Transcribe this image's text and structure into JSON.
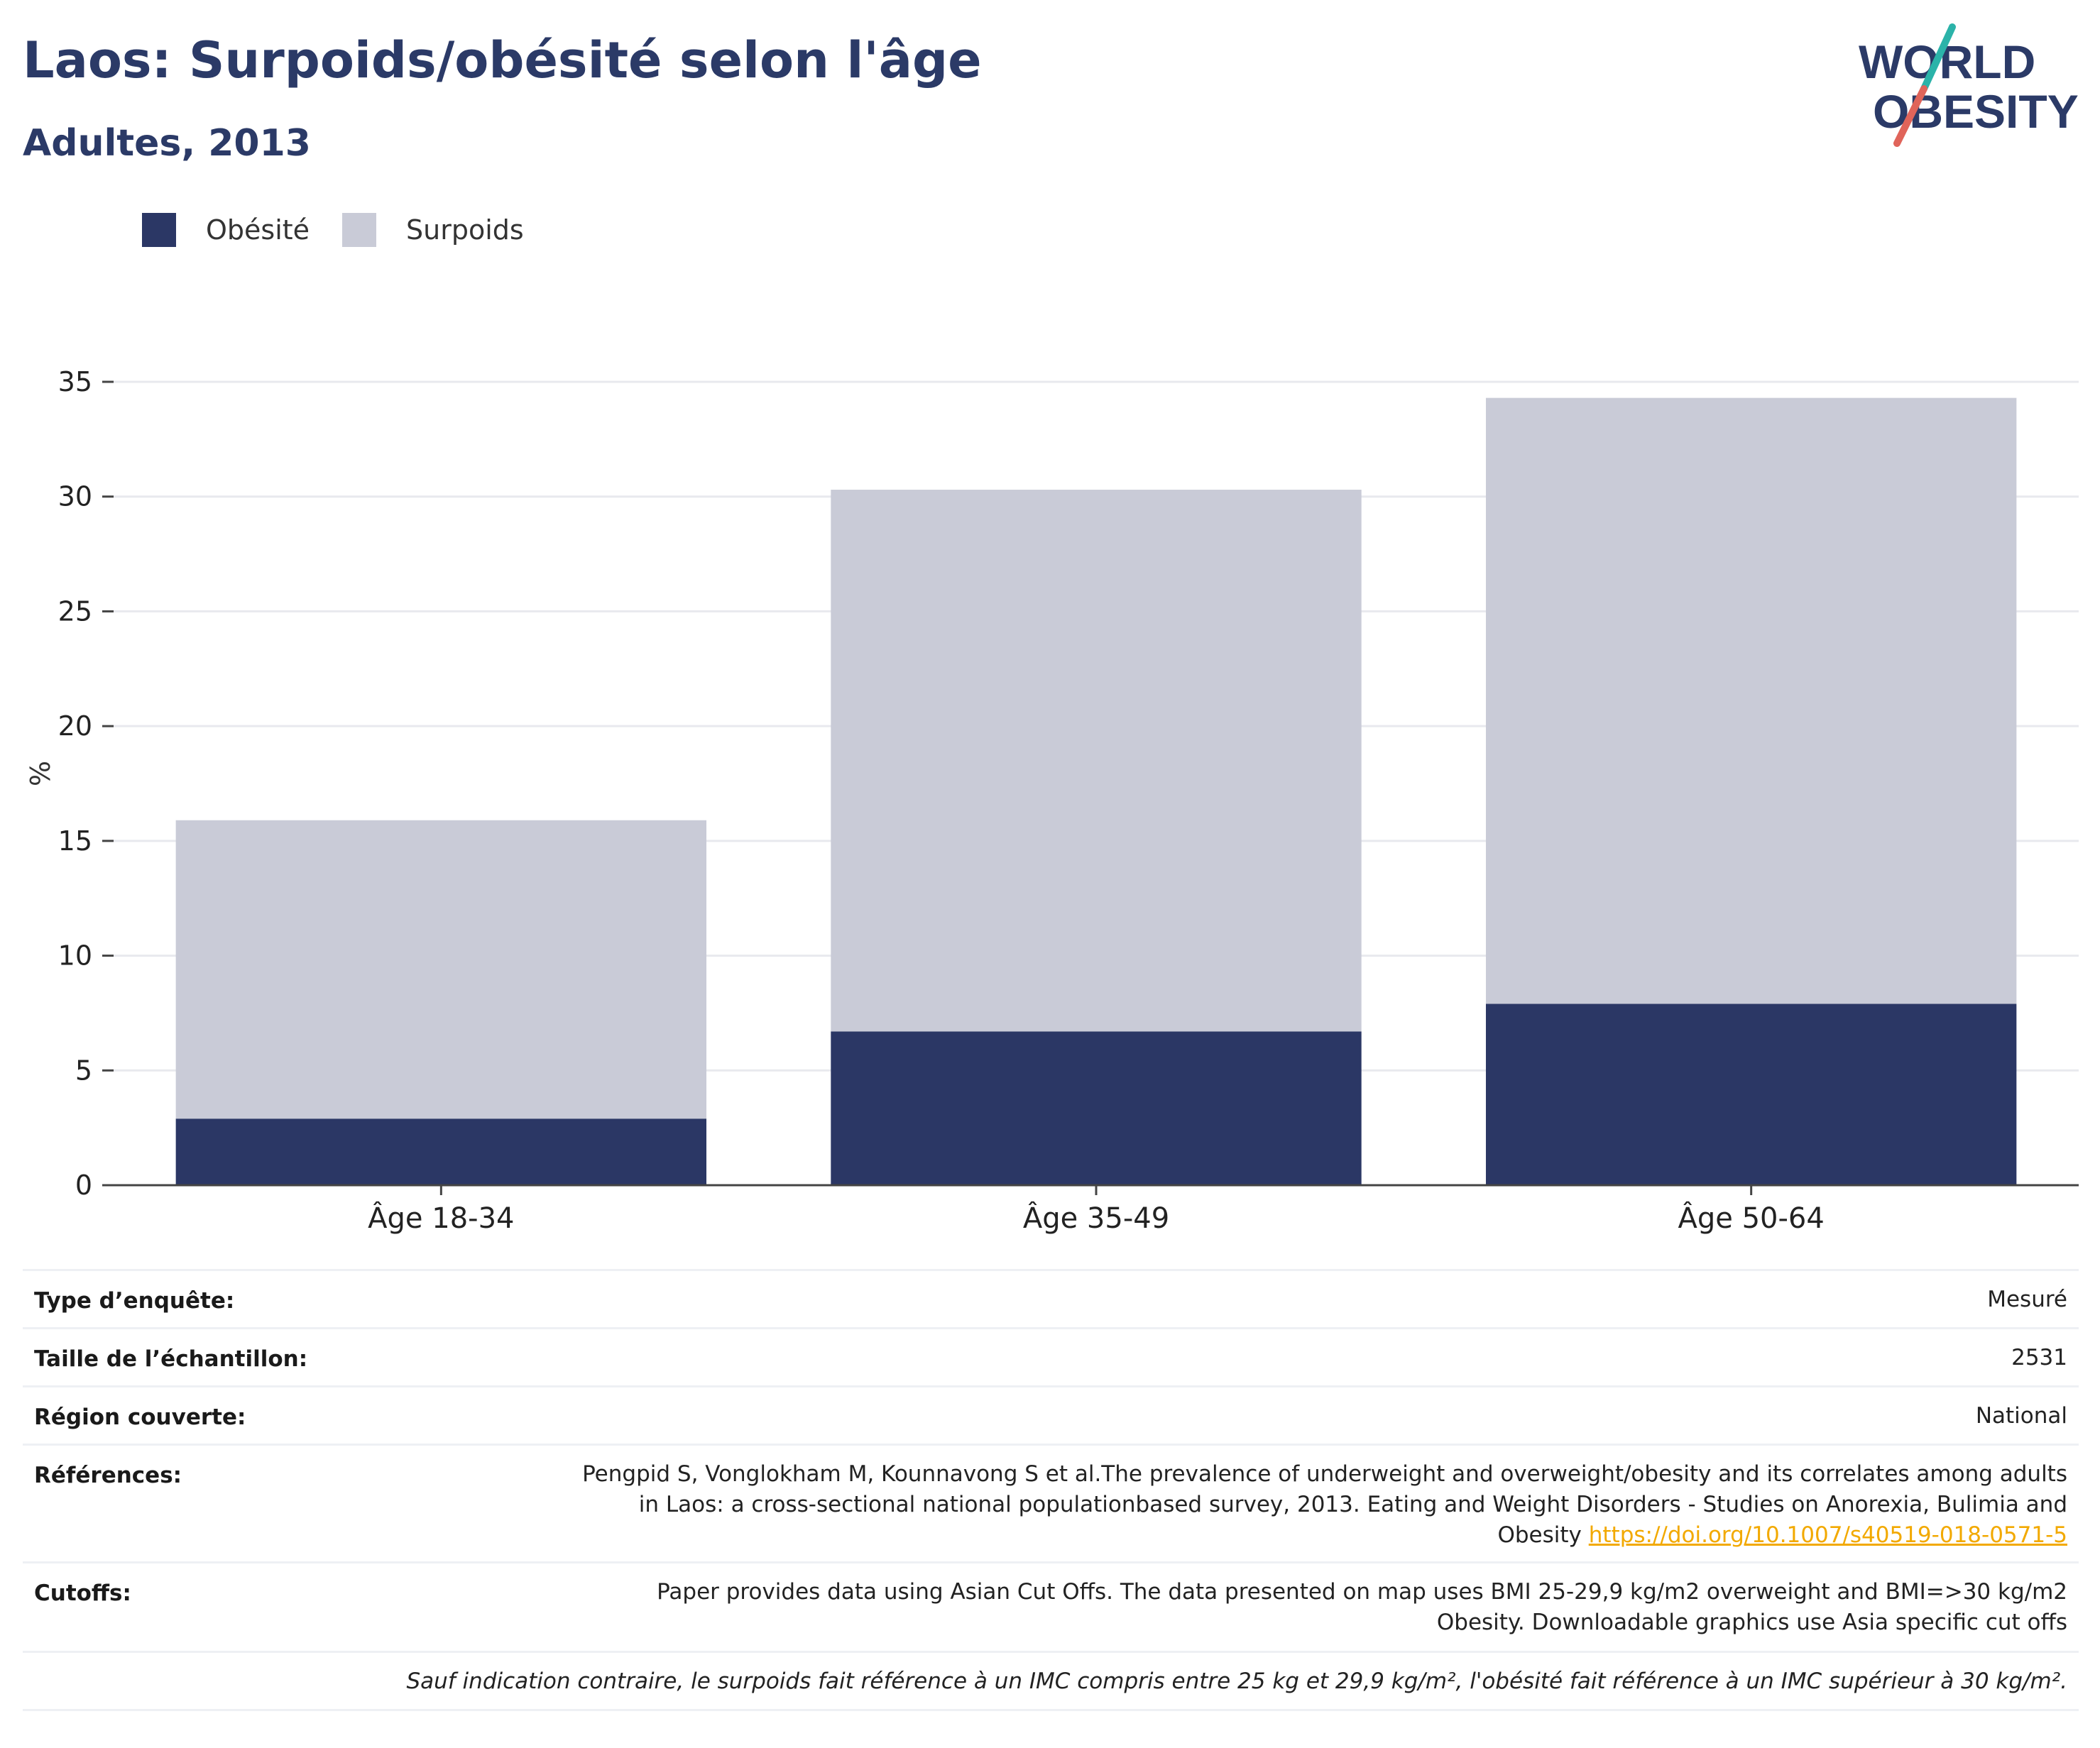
{
  "title": "Laos: Surpoids/obésité selon l'âge",
  "subtitle": "Adultes, 2013",
  "logo": {
    "line1": "WORLD",
    "line2": "OBESITY",
    "colors": {
      "text": "#2b3a67",
      "slash_top": "#2bb3a9",
      "slash_bottom": "#e0645a"
    }
  },
  "legend": [
    {
      "label": "Obésité",
      "color": "#2b3765"
    },
    {
      "label": "Surpoids",
      "color": "#c9cbd7"
    }
  ],
  "chart_data": {
    "type": "bar",
    "stacked": true,
    "categories": [
      "Âge 18-34",
      "Âge 35-49",
      "Âge 50-64"
    ],
    "series": [
      {
        "name": "Obésité",
        "values": [
          2.9,
          6.7,
          7.9
        ],
        "color": "#2b3765"
      },
      {
        "name": "Surpoids",
        "values": [
          13.0,
          23.6,
          26.4
        ],
        "color": "#c9cbd7"
      }
    ],
    "ylabel": "%",
    "ylim": [
      0,
      35
    ],
    "yticks": [
      0,
      5,
      10,
      15,
      20,
      25,
      30,
      35
    ],
    "grid": true,
    "legend_position": "top-left"
  },
  "info": {
    "survey_type": {
      "label": "Type d’enquête:",
      "value": "Mesuré"
    },
    "sample_size": {
      "label": "Taille de l’échantillon:",
      "value": "2531"
    },
    "region": {
      "label": "Région couverte:",
      "value": "National"
    },
    "references": {
      "label": "Références:",
      "line1": "Pengpid S, Vonglokham M, Kounnavong S et al.The prevalence of underweight and overweight/obesity and its correlates among adults",
      "line2": "in Laos: a cross-sectional national populationbased survey, 2013. Eating and Weight Disorders - Studies on Anorexia, Bulimia and",
      "line3": "Obesity",
      "link": "https://doi.org/10.1007/s40519-018-0571-5"
    },
    "cutoffs": {
      "label": "Cutoffs:",
      "line1": "Paper provides data using Asian Cut Offs. The data presented on map uses BMI 25-29,9 kg/m2 overweight and BMI=>30 kg/m2",
      "line2": "Obesity. Downloadable graphics use Asia specific cut offs"
    },
    "footnote": "Sauf indication contraire, le surpoids fait référence à un IMC compris entre 25 kg et 29,9 kg/m², l'obésité fait référence à un IMC supérieur à 30 kg/m²."
  }
}
